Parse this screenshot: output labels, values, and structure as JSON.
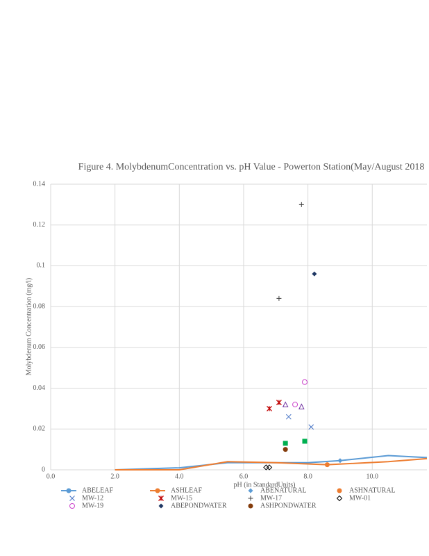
{
  "chart_data": {
    "type": "scatter",
    "title": "Figure 4. MolybdenumConcentration  vs. pH Value - Powerton Station(May/August 2018",
    "x_label": "pH (in StandardUnits)",
    "y_label": "Molybdenum Concentration   (mg/l)",
    "xlim": [
      0,
      11.7
    ],
    "ylim": [
      0,
      0.14
    ],
    "xticks": [
      {
        "value": 0,
        "label": "0.0"
      },
      {
        "value": 2,
        "label": "2.0"
      },
      {
        "value": 4,
        "label": "4.0"
      },
      {
        "value": 6,
        "label": "6.0"
      },
      {
        "value": 8,
        "label": "8.0"
      },
      {
        "value": 10,
        "label": "10.0"
      }
    ],
    "yticks": [
      0,
      0.02,
      0.04,
      0.06,
      0.08,
      0.1,
      0.12,
      0.14
    ],
    "grid": true,
    "legend": "bottom",
    "series": [
      {
        "name": "ABELEAF",
        "color": "#5b9bd5",
        "marker": "line",
        "x": [
          2,
          4,
          5.5,
          7,
          8,
          9,
          10.5,
          11.7
        ],
        "values": [
          0,
          0.001,
          0.0035,
          0.0035,
          0.0035,
          0.0045,
          0.007,
          0.006
        ]
      },
      {
        "name": "ASHLEAF",
        "color": "#ed7d31",
        "marker": "line",
        "x": [
          2,
          4,
          5.5,
          7,
          8.6,
          10.5,
          11.7
        ],
        "values": [
          0,
          0,
          0.004,
          0.0035,
          0.0025,
          0.004,
          0.0055
        ]
      },
      {
        "name": "ABENATURAL",
        "color": "#5b9bd5",
        "marker": "diamond",
        "x": [
          9
        ],
        "values": [
          0.0045
        ]
      },
      {
        "name": "ASHNATURAL",
        "color": "#ed7d31",
        "marker": "circle",
        "x": [
          8.6
        ],
        "values": [
          0.0025
        ]
      },
      {
        "name": "MW-12",
        "color": "#4472c4",
        "marker": "x",
        "x": [
          7.4,
          8.1
        ],
        "values": [
          0.026,
          0.021
        ]
      },
      {
        "name": "MW-15",
        "color": "#c00000",
        "marker": "asterisk",
        "x": [
          6.8,
          7.1
        ],
        "values": [
          0.03,
          0.033
        ]
      },
      {
        "name": "MW-17",
        "color": "#404040",
        "marker": "plus",
        "x": [
          7.1,
          7.8
        ],
        "values": [
          0.084,
          0.13
        ]
      },
      {
        "name": "MW-01",
        "color": "#000000",
        "marker": "diamond-open",
        "x": [
          6.7,
          6.8
        ],
        "values": [
          0.0012,
          0.0012
        ]
      },
      {
        "name": "MW-19",
        "color": "#cc44cc",
        "marker": "circle-open",
        "x": [
          7.6,
          7.9
        ],
        "values": [
          0.032,
          0.043
        ]
      },
      {
        "name": "ABEPONDWATER",
        "color": "#1f3864",
        "marker": "diamond",
        "x": [
          8.2
        ],
        "values": [
          0.096
        ]
      },
      {
        "name": "ASHPONDWATER",
        "color": "#843c0c",
        "marker": "circle",
        "x": [
          7.3
        ],
        "values": [
          0.01
        ]
      },
      {
        "color": "#00b050",
        "marker": "square",
        "x": [
          7.3,
          7.9
        ],
        "values": [
          0.013,
          0.014
        ]
      },
      {
        "color": "#7030a0",
        "marker": "triangle-open",
        "x": [
          7.3,
          7.8
        ],
        "values": [
          0.032,
          0.031
        ]
      }
    ]
  }
}
